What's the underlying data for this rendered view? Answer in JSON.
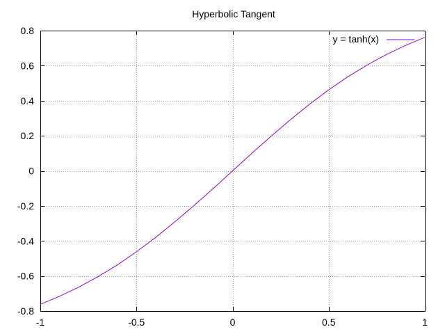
{
  "chart_data": {
    "type": "line",
    "title": "Hyperbolic Tangent",
    "xlabel": "",
    "ylabel": "",
    "xlim": [
      -1,
      1
    ],
    "ylim": [
      -0.8,
      0.8
    ],
    "x_ticks": [
      -1,
      -0.5,
      0,
      0.5,
      1
    ],
    "x_tick_labels": [
      "-1",
      "-0.5",
      "0",
      "0.5",
      "1"
    ],
    "y_ticks": [
      -0.8,
      -0.6,
      -0.4,
      -0.2,
      0,
      0.2,
      0.4,
      0.6,
      0.8
    ],
    "y_tick_labels": [
      "-0.8",
      "-0.6",
      "-0.4",
      "-0.2",
      "0",
      "0.2",
      "0.4",
      "0.6",
      "0.8"
    ],
    "grid": true,
    "legend_position": "top-right",
    "series": [
      {
        "name": "y = tanh(x)",
        "color": "#9400d3",
        "x": [
          -1,
          -0.9,
          -0.8,
          -0.7,
          -0.6,
          -0.5,
          -0.4,
          -0.3,
          -0.2,
          -0.1,
          0,
          0.1,
          0.2,
          0.3,
          0.4,
          0.5,
          0.6,
          0.7,
          0.8,
          0.9,
          1
        ],
        "y": [
          -0.762,
          -0.716,
          -0.664,
          -0.604,
          -0.537,
          -0.462,
          -0.38,
          -0.291,
          -0.197,
          -0.1,
          0,
          0.1,
          0.197,
          0.291,
          0.38,
          0.462,
          0.537,
          0.604,
          0.664,
          0.716,
          0.762
        ]
      }
    ]
  }
}
